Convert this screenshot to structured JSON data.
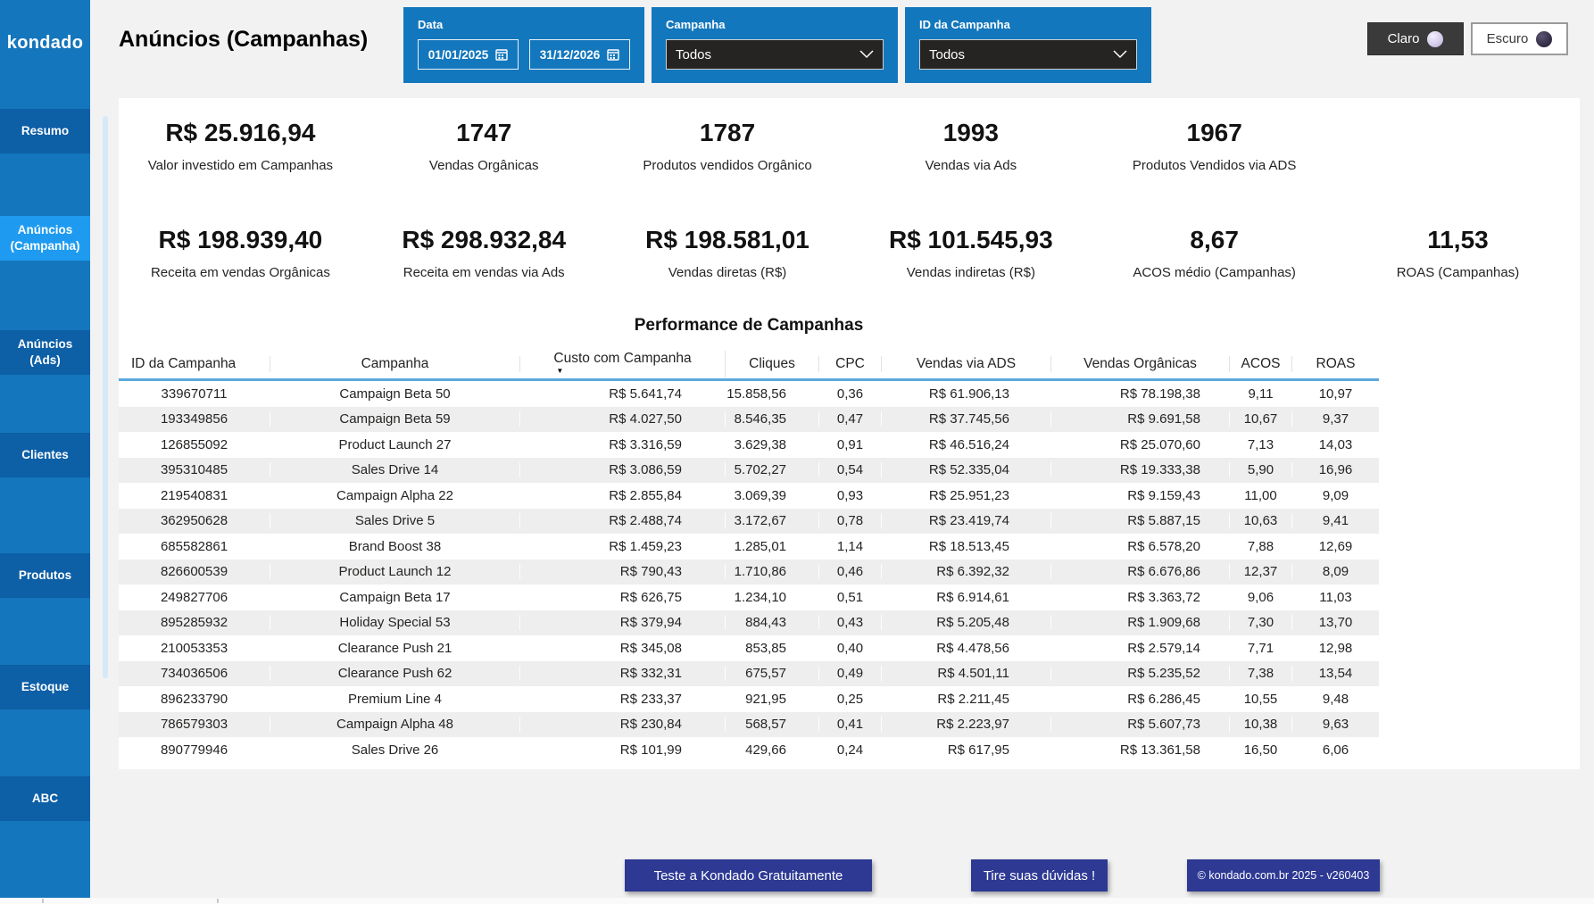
{
  "brand": {
    "logo_text": "kondado"
  },
  "header": {
    "title": "Anúncios (Campanhas)",
    "filters": {
      "date": {
        "label": "Data",
        "start_value": "01/01/2025",
        "end_value": "31/12/2026"
      },
      "campaign": {
        "label": "Campanha",
        "selected": "Todos"
      },
      "campaign_id": {
        "label": "ID da Campanha",
        "selected": "Todos"
      }
    },
    "theme_toggle": {
      "light": "Claro",
      "dark": "Escuro"
    }
  },
  "sidebar": {
    "items": [
      {
        "label": "Resumo",
        "active": false
      },
      {
        "label": "Anúncios (Campanha)",
        "active": true
      },
      {
        "label": "Anúncios (Ads)",
        "active": false
      },
      {
        "label": "Clientes",
        "active": false
      },
      {
        "label": "Produtos",
        "active": false
      },
      {
        "label": "Estoque",
        "active": false
      },
      {
        "label": "ABC",
        "active": false
      }
    ]
  },
  "kpis": {
    "row1": [
      {
        "value": "R$ 25.916,94",
        "label": "Valor investido em Campanhas"
      },
      {
        "value": "1747",
        "label": "Vendas Orgânicas"
      },
      {
        "value": "1787",
        "label": "Produtos vendidos Orgânico"
      },
      {
        "value": "1993",
        "label": "Vendas via Ads"
      },
      {
        "value": "1967",
        "label": "Produtos Vendidos via ADS"
      },
      null
    ],
    "row2": [
      {
        "value": "R$ 198.939,40",
        "label": "Receita em vendas Orgânicas"
      },
      {
        "value": "R$ 298.932,84",
        "label": "Receita em vendas via Ads"
      },
      {
        "value": "R$ 198.581,01",
        "label": "Vendas diretas (R$)"
      },
      {
        "value": "R$ 101.545,93",
        "label": "Vendas indiretas (R$)"
      },
      {
        "value": "8,67",
        "label": "ACOS médio (Campanhas)"
      },
      {
        "value": "11,53",
        "label": "ROAS (Campanhas)"
      }
    ]
  },
  "table": {
    "title": "Performance de Campanhas",
    "columns": [
      "ID da Campanha",
      "Campanha",
      "Custo com Campanha",
      "Cliques",
      "CPC",
      "Vendas via ADS",
      "Vendas Orgânicas",
      "ACOS",
      "ROAS"
    ],
    "sort": {
      "column": "Custo com Campanha",
      "column_index": 2,
      "direction": "desc"
    },
    "rows": [
      [
        "339670711",
        "Campaign Beta 50",
        "R$ 5.641,74",
        "15.858,56",
        "0,36",
        "R$ 61.906,13",
        "R$ 78.198,38",
        "9,11",
        "10,97"
      ],
      [
        "193349856",
        "Campaign Beta 59",
        "R$ 4.027,50",
        "8.546,35",
        "0,47",
        "R$ 37.745,56",
        "R$ 9.691,58",
        "10,67",
        "9,37"
      ],
      [
        "126855092",
        "Product Launch 27",
        "R$ 3.316,59",
        "3.629,38",
        "0,91",
        "R$ 46.516,24",
        "R$ 25.070,60",
        "7,13",
        "14,03"
      ],
      [
        "395310485",
        "Sales Drive 14",
        "R$ 3.086,59",
        "5.702,27",
        "0,54",
        "R$ 52.335,04",
        "R$ 19.333,38",
        "5,90",
        "16,96"
      ],
      [
        "219540831",
        "Campaign Alpha 22",
        "R$ 2.855,84",
        "3.069,39",
        "0,93",
        "R$ 25.951,23",
        "R$ 9.159,43",
        "11,00",
        "9,09"
      ],
      [
        "362950628",
        "Sales Drive 5",
        "R$ 2.488,74",
        "3.172,67",
        "0,78",
        "R$ 23.419,74",
        "R$ 5.887,15",
        "10,63",
        "9,41"
      ],
      [
        "685582861",
        "Brand Boost 38",
        "R$ 1.459,23",
        "1.285,01",
        "1,14",
        "R$ 18.513,45",
        "R$ 6.578,20",
        "7,88",
        "12,69"
      ],
      [
        "826600539",
        "Product Launch 12",
        "R$ 790,43",
        "1.710,86",
        "0,46",
        "R$ 6.392,32",
        "R$ 6.676,86",
        "12,37",
        "8,09"
      ],
      [
        "249827706",
        "Campaign Beta 17",
        "R$ 626,75",
        "1.234,10",
        "0,51",
        "R$ 6.914,61",
        "R$ 3.363,72",
        "9,06",
        "11,03"
      ],
      [
        "895285932",
        "Holiday Special 53",
        "R$ 379,94",
        "884,43",
        "0,43",
        "R$ 5.205,48",
        "R$ 1.909,68",
        "7,30",
        "13,70"
      ],
      [
        "210053353",
        "Clearance Push 21",
        "R$ 345,08",
        "853,85",
        "0,40",
        "R$ 4.478,56",
        "R$ 2.579,14",
        "7,71",
        "12,98"
      ],
      [
        "734036506",
        "Clearance Push 62",
        "R$ 332,31",
        "675,57",
        "0,49",
        "R$ 4.501,11",
        "R$ 5.235,52",
        "7,38",
        "13,54"
      ],
      [
        "896233790",
        "Premium Line 4",
        "R$ 233,37",
        "921,95",
        "0,25",
        "R$ 2.211,45",
        "R$ 6.286,45",
        "10,55",
        "9,48"
      ],
      [
        "786579303",
        "Campaign Alpha 48",
        "R$ 230,84",
        "568,57",
        "0,41",
        "R$ 2.223,97",
        "R$ 5.607,73",
        "10,38",
        "9,63"
      ],
      [
        "890779946",
        "Sales Drive 26",
        "R$ 101,99",
        "429,66",
        "0,24",
        "R$ 617,95",
        "R$ 13.361,58",
        "16,50",
        "6,06"
      ]
    ]
  },
  "footer": {
    "buttons": [
      {
        "label": "Teste a Kondado Gratuitamente"
      },
      {
        "label": "Tire suas dúvidas !"
      },
      {
        "label": "© kondado.com.br 2025 - v260403"
      }
    ]
  },
  "colors": {
    "page_bg": "#f2f2f2",
    "panel_bg": "#ffffff",
    "sidebar_bg": "#1476bc",
    "sidebar_item_bg": "#0d5fa6",
    "sidebar_item_active_bg": "#1e9bf0",
    "filter_panel_bg": "#1377bd",
    "dropdown_bg": "#252423",
    "header_line": "#5ba9de",
    "alt_row_bg": "#eeeeee",
    "footer_btn_bg": "#2d3993"
  }
}
